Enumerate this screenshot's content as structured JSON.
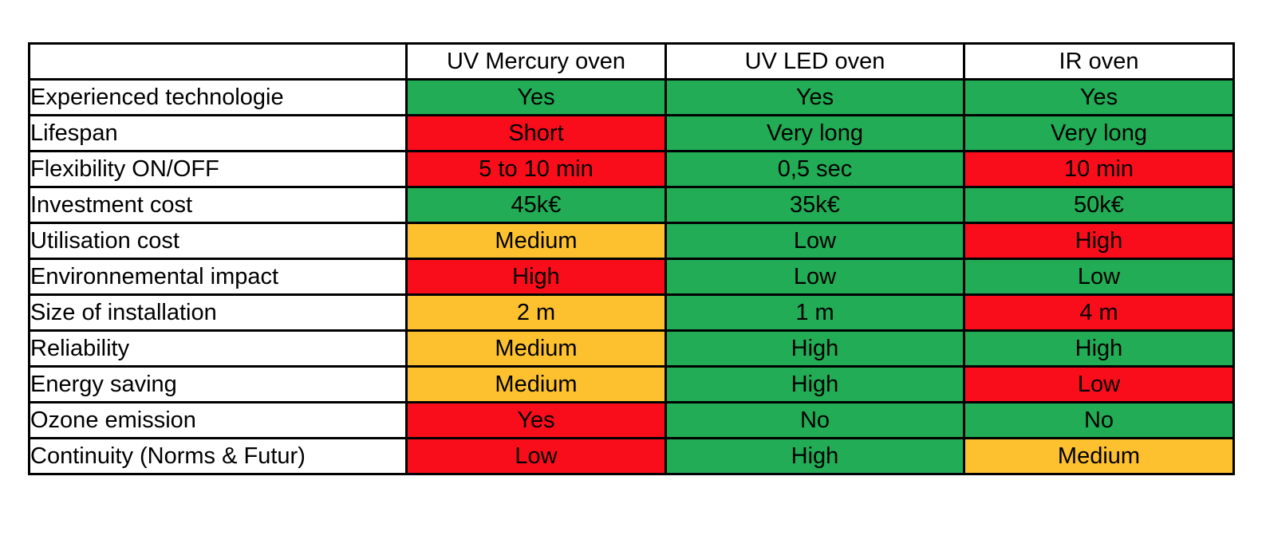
{
  "table": {
    "columns": [
      "UV Mercury oven",
      "UV LED oven",
      "IR oven"
    ],
    "rows": [
      {
        "label": "Experienced technologie",
        "cells": [
          {
            "text": "Yes",
            "status": "good"
          },
          {
            "text": "Yes",
            "status": "good"
          },
          {
            "text": "Yes",
            "status": "good"
          }
        ]
      },
      {
        "label": "Lifespan",
        "cells": [
          {
            "text": "Short",
            "status": "bad"
          },
          {
            "text": "Very long",
            "status": "good"
          },
          {
            "text": "Very long",
            "status": "good"
          }
        ]
      },
      {
        "label": "Flexibility ON/OFF",
        "cells": [
          {
            "text": "5 to 10 min",
            "status": "bad"
          },
          {
            "text": "0,5 sec",
            "status": "good"
          },
          {
            "text": "10 min",
            "status": "bad"
          }
        ]
      },
      {
        "label": "Investment cost",
        "cells": [
          {
            "text": "45k€",
            "status": "good"
          },
          {
            "text": "35k€",
            "status": "good"
          },
          {
            "text": "50k€",
            "status": "good"
          }
        ]
      },
      {
        "label": "Utilisation cost",
        "cells": [
          {
            "text": "Medium",
            "status": "medium"
          },
          {
            "text": "Low",
            "status": "good"
          },
          {
            "text": "High",
            "status": "bad"
          }
        ]
      },
      {
        "label": "Environnemental impact",
        "cells": [
          {
            "text": "High",
            "status": "bad"
          },
          {
            "text": "Low",
            "status": "good"
          },
          {
            "text": "Low",
            "status": "good"
          }
        ]
      },
      {
        "label": "Size of installation",
        "cells": [
          {
            "text": "2 m",
            "status": "medium"
          },
          {
            "text": "1 m",
            "status": "good"
          },
          {
            "text": "4 m",
            "status": "bad"
          }
        ]
      },
      {
        "label": "Reliability",
        "cells": [
          {
            "text": "Medium",
            "status": "medium"
          },
          {
            "text": "High",
            "status": "good"
          },
          {
            "text": "High",
            "status": "good"
          }
        ]
      },
      {
        "label": "Energy saving",
        "cells": [
          {
            "text": "Medium",
            "status": "medium"
          },
          {
            "text": "High",
            "status": "good"
          },
          {
            "text": "Low",
            "status": "bad"
          }
        ]
      },
      {
        "label": "Ozone emission",
        "cells": [
          {
            "text": "Yes",
            "status": "bad"
          },
          {
            "text": "No",
            "status": "good"
          },
          {
            "text": "No",
            "status": "good"
          }
        ]
      },
      {
        "label": "Continuity (Norms & Futur)",
        "cells": [
          {
            "text": "Low",
            "status": "bad"
          },
          {
            "text": "High",
            "status": "good"
          },
          {
            "text": "Medium",
            "status": "medium"
          }
        ]
      }
    ]
  },
  "colors": {
    "good": "#21AC55",
    "medium": "#FDC130",
    "bad": "#FA0D1B",
    "border": "#000000",
    "text": "#000000",
    "background": "#FFFFFF"
  }
}
